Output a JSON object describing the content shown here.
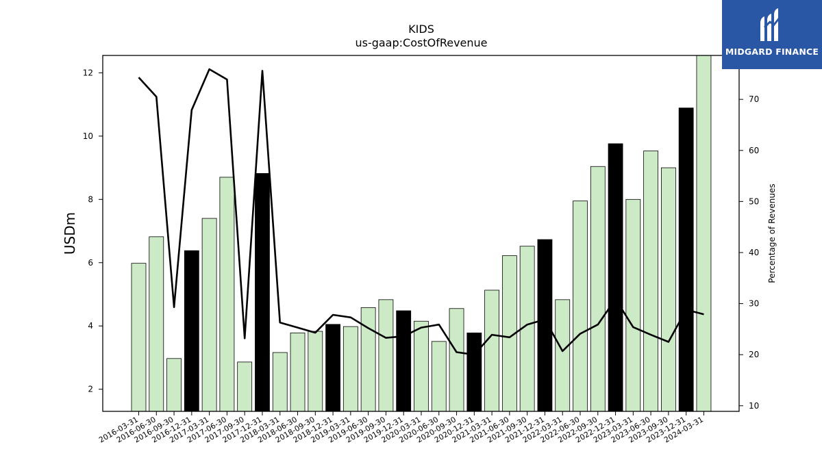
{
  "chart_data": {
    "type": "bar",
    "title": "KIDS",
    "subtitle": "us-gaap:CostOfRevenue",
    "ylabel": "USDm",
    "y2label": "Percentage of Revenues",
    "ylim": [
      1.3,
      12.55
    ],
    "y2lim": [
      8.9,
      78.6
    ],
    "yticks": [
      2,
      4,
      6,
      8,
      10,
      12
    ],
    "y2ticks": [
      10,
      20,
      30,
      40,
      50,
      60,
      70
    ],
    "categories": [
      "2016-03-31",
      "2016-06-30",
      "2016-09-30",
      "2016-12-31",
      "2017-03-31",
      "2017-06-30",
      "2017-09-30",
      "2017-12-31",
      "2018-03-31",
      "2018-06-30",
      "2018-09-30",
      "2018-12-31",
      "2019-03-31",
      "2019-06-30",
      "2019-09-30",
      "2019-12-31",
      "2020-03-31",
      "2020-06-30",
      "2020-09-30",
      "2020-12-31",
      "2021-03-31",
      "2021-06-30",
      "2021-09-30",
      "2021-12-31",
      "2022-03-31",
      "2022-06-30",
      "2022-09-30",
      "2022-12-31",
      "2023-03-31",
      "2023-06-30",
      "2023-09-30",
      "2023-12-31",
      "2024-03-31"
    ],
    "series": [
      {
        "kind": "bar",
        "values": [
          5.98,
          6.82,
          2.97,
          6.38,
          7.4,
          8.7,
          2.86,
          8.82,
          3.16,
          3.78,
          3.83,
          4.05,
          3.98,
          4.58,
          4.83,
          4.48,
          4.15,
          3.51,
          4.55,
          3.78,
          5.13,
          6.22,
          6.52,
          6.73,
          4.83,
          7.95,
          9.04,
          9.76,
          8.0,
          9.53,
          9.0,
          10.89,
          12.55
        ],
        "highlight": [
          false,
          false,
          false,
          true,
          false,
          false,
          false,
          true,
          false,
          false,
          false,
          true,
          false,
          false,
          false,
          true,
          false,
          false,
          false,
          true,
          false,
          false,
          false,
          true,
          false,
          false,
          false,
          true,
          false,
          false,
          false,
          true,
          false
        ],
        "color": "#cdeac6",
        "highlight_color": "#000000"
      },
      {
        "kind": "line",
        "axis": "y2",
        "values": [
          74.3,
          70.5,
          29.3,
          67.9,
          75.9,
          73.9,
          23.2,
          75.6,
          26.3,
          25.3,
          24.3,
          27.8,
          27.3,
          25.2,
          23.3,
          23.6,
          25.3,
          25.9,
          20.5,
          20.0,
          23.9,
          23.4,
          25.9,
          26.9,
          20.7,
          24.1,
          25.9,
          30.9,
          25.4,
          23.9,
          22.5,
          28.8,
          27.9
        ],
        "color": "#000000"
      }
    ]
  },
  "logo": {
    "text": "MIDGARD FINANCE",
    "color": "#2a56a6"
  }
}
